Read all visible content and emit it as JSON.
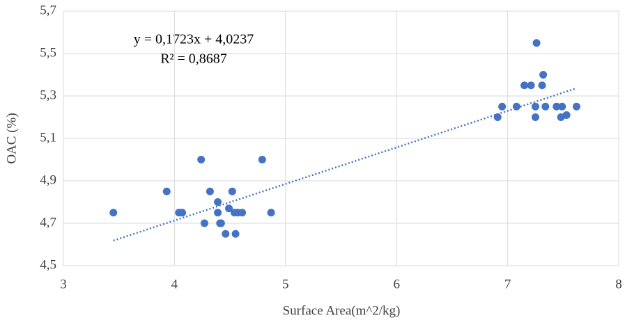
{
  "chart_data": {
    "type": "scatter",
    "x_label": "Surface Area(m^2/kg)",
    "y_label": "OAC (%)",
    "equation": "y = 0,1723x + 4,0237",
    "r_squared": "R² = 0,8687",
    "trendline": {
      "slope": 0.1723,
      "intercept": 4.0237,
      "color": "#4472c4"
    },
    "grid": true,
    "series": [
      {
        "color": "#4472c4",
        "x": [
          3.45,
          3.93,
          4.04,
          4.07,
          4.24,
          4.27,
          4.32,
          4.39,
          4.39,
          4.41,
          4.42,
          4.46,
          4.49,
          4.52,
          4.54,
          4.55,
          4.57,
          4.61,
          4.79,
          4.87,
          6.91,
          6.95,
          7.08,
          7.15,
          7.21,
          7.26,
          7.25,
          7.25,
          7.32,
          7.31,
          7.34,
          7.44,
          7.49,
          7.48,
          7.53,
          7.62
        ],
        "values": [
          4.75,
          4.85,
          4.75,
          4.75,
          5.0,
          4.7,
          4.85,
          4.8,
          4.75,
          4.7,
          4.7,
          4.65,
          4.77,
          4.85,
          4.75,
          4.65,
          4.75,
          4.75,
          5.0,
          4.75,
          5.2,
          5.25,
          5.25,
          5.35,
          5.35,
          5.55,
          5.25,
          5.2,
          5.4,
          5.35,
          5.25,
          5.25,
          5.25,
          5.2,
          5.21,
          5.25
        ]
      }
    ],
    "xlim": [
      3,
      8
    ],
    "xticks": [
      3,
      4,
      5,
      6,
      7,
      8
    ],
    "ylim": [
      4.5,
      5.7
    ],
    "yticks": [
      {
        "value": 4.5,
        "label": "4,5"
      },
      {
        "value": 4.7,
        "label": "4,7"
      },
      {
        "value": 4.9,
        "label": "4,9"
      },
      {
        "value": 5.1,
        "label": "5,1"
      },
      {
        "value": 5.3,
        "label": "5,3"
      },
      {
        "value": 5.5,
        "label": "5,5"
      },
      {
        "value": 5.7,
        "label": "5,7"
      }
    ]
  }
}
